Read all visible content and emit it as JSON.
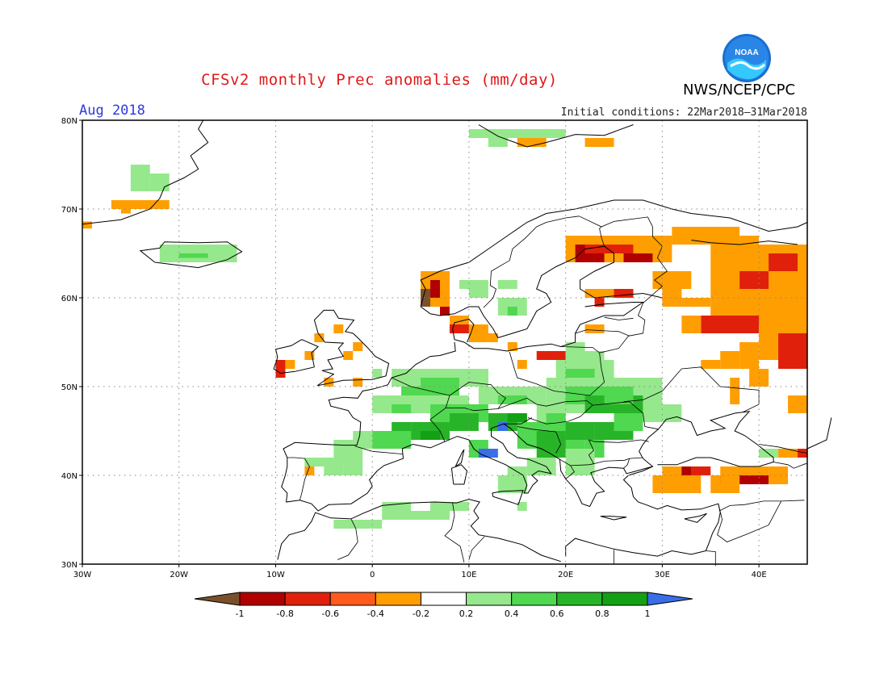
{
  "header": {
    "title": "CFSv2 monthly Prec anomalies (mm/day)",
    "agency": "NWS/NCEP/CPC",
    "logo_text": "NOAA",
    "month": "Aug 2018",
    "initial_conditions": "Initial conditions: 22Mar2018–31Mar2018"
  },
  "map": {
    "region": "Europe",
    "lon_range": [
      -30,
      45
    ],
    "lat_range": [
      30,
      80
    ],
    "lat_ticks": [
      "80N",
      "70N",
      "60N",
      "50N",
      "40N",
      "30N"
    ],
    "lon_ticks": [
      "30W",
      "20W",
      "10W",
      "0",
      "10E",
      "20E",
      "30E",
      "40E"
    ],
    "grid": "dotted, every 10 degrees"
  },
  "legend": {
    "labels": [
      "-1",
      "-0.8",
      "-0.6",
      "-0.4",
      "-0.2",
      "0.2",
      "0.4",
      "0.6",
      "0.8",
      "1"
    ],
    "colors": [
      "#7a4f2a",
      "#b00000",
      "#e0200a",
      "#ff5a1e",
      "#ff9e00",
      "#ffffff",
      "#96e88c",
      "#50d850",
      "#28b428",
      "#14a014",
      "#3a6de8"
    ]
  },
  "colors": {
    "title": "#e01818",
    "month": "#2b39e0",
    "noaa_blue": "#1a6fd1"
  }
}
